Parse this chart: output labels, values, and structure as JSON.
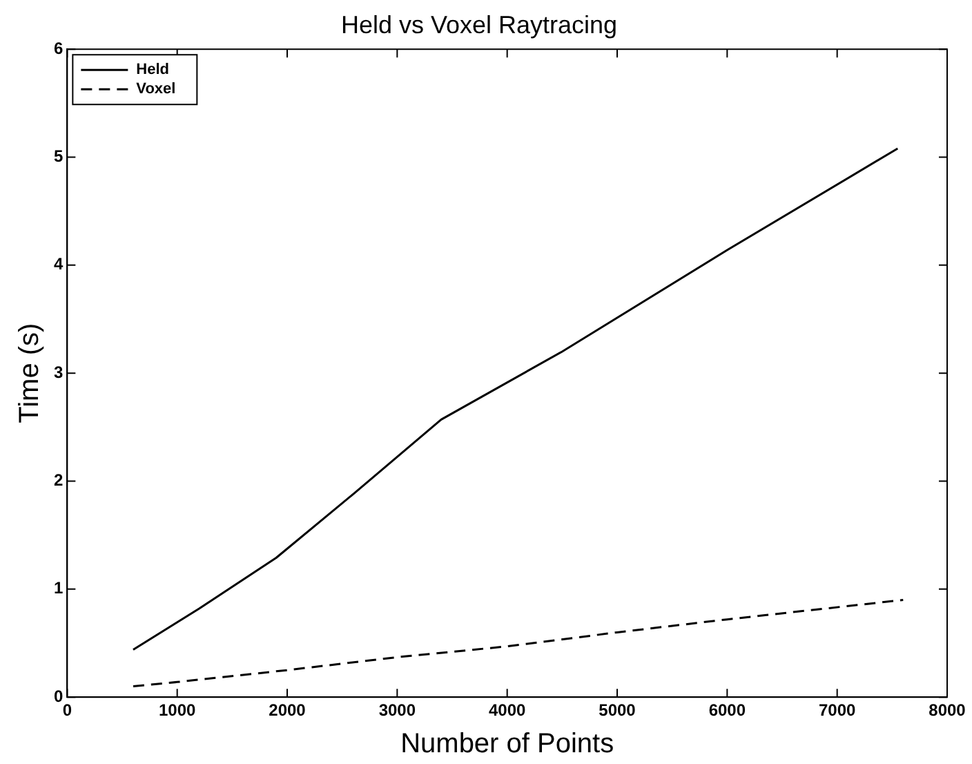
{
  "chart_data": {
    "type": "line",
    "title": "Held vs Voxel Raytracing",
    "xlabel": "Number of Points",
    "ylabel": "Time (s)",
    "xlim": [
      0,
      8000
    ],
    "xticks": [
      0,
      1000,
      2000,
      3000,
      4000,
      5000,
      6000,
      7000,
      8000
    ],
    "ylim": [
      0,
      6
    ],
    "yticks": [
      0,
      1,
      2,
      3,
      4,
      5,
      6
    ],
    "legend": "top left",
    "grid": false,
    "series": [
      {
        "name": "Held",
        "color": "#000000",
        "line_style": "solid",
        "x": [
          600,
          1200,
          1900,
          2600,
          3400,
          4500,
          6000,
          7550
        ],
        "values": [
          0.44,
          0.82,
          1.29,
          1.88,
          2.57,
          3.2,
          4.14,
          5.08
        ]
      },
      {
        "name": "Voxel",
        "color": "#000000",
        "line_style": "dashed",
        "x": [
          600,
          1000,
          2000,
          3000,
          4000,
          5000,
          6000,
          7600
        ],
        "values": [
          0.1,
          0.14,
          0.25,
          0.37,
          0.47,
          0.6,
          0.72,
          0.9
        ]
      }
    ]
  }
}
